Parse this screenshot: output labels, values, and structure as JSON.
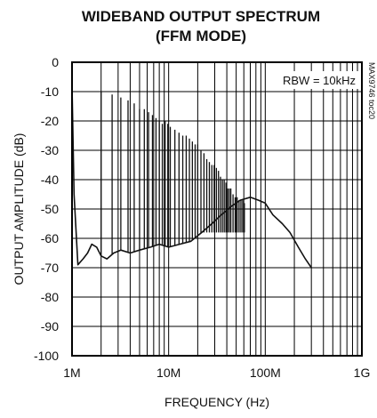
{
  "chart_data": {
    "type": "line",
    "title": "WIDEBAND OUTPUT SPECTRUM",
    "subtitle": "(FFM MODE)",
    "xlabel": "FREQUENCY (Hz)",
    "ylabel": "OUTPUT AMPLITUDE (dB)",
    "x_scale": "log",
    "xlim": [
      1000000,
      1000000000
    ],
    "ylim": [
      -100,
      0
    ],
    "x_ticks": [
      {
        "value": 1000000,
        "label": "1M"
      },
      {
        "value": 10000000,
        "label": "10M"
      },
      {
        "value": 100000000,
        "label": "100M"
      },
      {
        "value": 1000000000,
        "label": "1G"
      }
    ],
    "y_ticks": [
      {
        "value": 0,
        "label": "0"
      },
      {
        "value": -10,
        "label": "-10"
      },
      {
        "value": -20,
        "label": "-20"
      },
      {
        "value": -30,
        "label": "-30"
      },
      {
        "value": -40,
        "label": "-40"
      },
      {
        "value": -50,
        "label": "-50"
      },
      {
        "value": -60,
        "label": "-60"
      },
      {
        "value": -70,
        "label": "-70"
      },
      {
        "value": -80,
        "label": "-80"
      },
      {
        "value": -90,
        "label": "-90"
      },
      {
        "value": -100,
        "label": "-100"
      }
    ],
    "grid": true,
    "annotation": "RBW = 10kHz",
    "side_label": "MAX9746 toc20",
    "noise_floor": {
      "x": [
        1000000,
        1050000,
        1150000,
        1300000,
        1450000,
        1600000,
        1800000,
        2000000,
        2300000,
        2700000,
        3200000,
        4000000,
        5000000,
        6500000,
        8000000,
        10000000,
        13000000,
        17000000,
        22000000,
        28000000,
        35000000,
        45000000,
        55000000,
        70000000,
        85000000,
        100000000,
        120000000,
        150000000,
        180000000,
        220000000,
        260000000,
        300000000
      ],
      "y": [
        -8,
        -45,
        -69,
        -67,
        -65,
        -62,
        -63,
        -66,
        -67,
        -65,
        -64,
        -65,
        -64,
        -63,
        -62,
        -63,
        -62,
        -61,
        -58,
        -55,
        -52,
        -49,
        -47,
        -46,
        -47,
        -48,
        -52,
        -55,
        -58,
        -63,
        -67,
        -70
      ]
    },
    "peaks": {
      "x": [
        1000000,
        2000000,
        2600000,
        3200000,
        3800000,
        4400000,
        5000000,
        5600000,
        6200000,
        6800000,
        7400000,
        8000000,
        8600000,
        9200000,
        9800000,
        10400000,
        11600000,
        12800000,
        14000000,
        15200000,
        16400000,
        17600000,
        18800000,
        20000000,
        21600000,
        23200000,
        24800000,
        26400000,
        28000000,
        29600000,
        31200000,
        32800000,
        34400000,
        36000000,
        37600000,
        39200000,
        40800000,
        42400000,
        44000000,
        46400000,
        48800000,
        51200000,
        53600000,
        56000000,
        58400000,
        60800000
      ],
      "y": [
        -8,
        -10,
        -11,
        -12,
        -13,
        -14,
        -16,
        -16,
        -17,
        -18,
        -19,
        -20,
        -21,
        -20,
        -21,
        -22,
        -23,
        -24,
        -25,
        -25,
        -26,
        -27,
        -28,
        -28,
        -30,
        -31,
        -33,
        -34,
        -35,
        -35,
        -36,
        -37,
        -39,
        -40,
        -40,
        -41,
        -43,
        -43,
        -43,
        -45,
        -46,
        -46,
        -47,
        -47,
        -47,
        -48
      ]
    }
  }
}
